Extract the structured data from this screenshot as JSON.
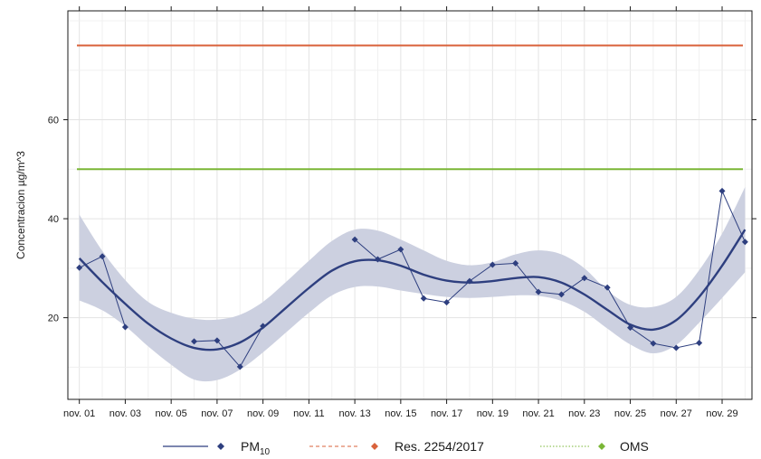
{
  "chart_data": {
    "type": "line",
    "ylabel": "Concentracion µg/m^3",
    "xlim": [
      0.5,
      30.3
    ],
    "ylim": [
      3.5,
      82
    ],
    "yticks": [
      20,
      40,
      60
    ],
    "xticks": [
      {
        "day": 1,
        "label": "nov. 01"
      },
      {
        "day": 3,
        "label": "nov. 03"
      },
      {
        "day": 5,
        "label": "nov. 05"
      },
      {
        "day": 7,
        "label": "nov. 07"
      },
      {
        "day": 9,
        "label": "nov. 09"
      },
      {
        "day": 11,
        "label": "nov. 11"
      },
      {
        "day": 13,
        "label": "nov. 13"
      },
      {
        "day": 15,
        "label": "nov. 15"
      },
      {
        "day": 17,
        "label": "nov. 17"
      },
      {
        "day": 19,
        "label": "nov. 19"
      },
      {
        "day": 21,
        "label": "nov. 21"
      },
      {
        "day": 23,
        "label": "nov. 23"
      },
      {
        "day": 25,
        "label": "nov. 25"
      },
      {
        "day": 27,
        "label": "nov. 27"
      },
      {
        "day": 29,
        "label": "nov. 29"
      }
    ],
    "grid": true,
    "legend_position": "bottom",
    "series": [
      {
        "name": "PM",
        "name_subscript": "10",
        "color": "#2e3f7f",
        "points": [
          {
            "day": 1,
            "value": 30.1
          },
          {
            "day": 2,
            "value": 32.4
          },
          {
            "day": 3,
            "value": 18.1
          },
          {
            "day": 6,
            "value": 15.2
          },
          {
            "day": 7,
            "value": 15.4
          },
          {
            "day": 8,
            "value": 10.1
          },
          {
            "day": 9,
            "value": 18.3
          },
          {
            "day": 13,
            "value": 35.8
          },
          {
            "day": 14,
            "value": 31.8
          },
          {
            "day": 15,
            "value": 33.8
          },
          {
            "day": 16,
            "value": 23.9
          },
          {
            "day": 17,
            "value": 23.1
          },
          {
            "day": 18,
            "value": 27.4
          },
          {
            "day": 19,
            "value": 30.7
          },
          {
            "day": 20,
            "value": 31.0
          },
          {
            "day": 21,
            "value": 25.2
          },
          {
            "day": 22,
            "value": 24.7
          },
          {
            "day": 23,
            "value": 28.0
          },
          {
            "day": 24,
            "value": 26.1
          },
          {
            "day": 25,
            "value": 18.0
          },
          {
            "day": 26,
            "value": 14.8
          },
          {
            "day": 27,
            "value": 13.9
          },
          {
            "day": 28,
            "value": 14.9
          },
          {
            "day": 29,
            "value": 45.6
          },
          {
            "day": 30,
            "value": 35.3
          }
        ],
        "smooth": [
          {
            "day": 1,
            "fit": 32.0,
            "lower": 23.5,
            "upper": 40.8
          },
          {
            "day": 2,
            "fit": 27.2,
            "lower": 21.5,
            "upper": 33.5
          },
          {
            "day": 3,
            "fit": 22.8,
            "lower": 18.3,
            "upper": 27.6
          },
          {
            "day": 4,
            "fit": 18.8,
            "lower": 14.2,
            "upper": 23.2
          },
          {
            "day": 5,
            "fit": 15.8,
            "lower": 10.5,
            "upper": 21.0
          },
          {
            "day": 6,
            "fit": 13.9,
            "lower": 7.5,
            "upper": 19.8
          },
          {
            "day": 7,
            "fit": 13.6,
            "lower": 7.4,
            "upper": 19.6
          },
          {
            "day": 8,
            "fit": 15.0,
            "lower": 9.5,
            "upper": 20.6
          },
          {
            "day": 9,
            "fit": 18.0,
            "lower": 13.0,
            "upper": 23.2
          },
          {
            "day": 10,
            "fit": 22.0,
            "lower": 17.0,
            "upper": 27.2
          },
          {
            "day": 11,
            "fit": 26.0,
            "lower": 21.0,
            "upper": 31.5
          },
          {
            "day": 12,
            "fit": 29.5,
            "lower": 24.5,
            "upper": 35.5
          },
          {
            "day": 13,
            "fit": 31.4,
            "lower": 26.2,
            "upper": 37.8
          },
          {
            "day": 14,
            "fit": 31.6,
            "lower": 26.3,
            "upper": 37.6
          },
          {
            "day": 15,
            "fit": 30.5,
            "lower": 25.5,
            "upper": 35.8
          },
          {
            "day": 16,
            "fit": 28.7,
            "lower": 24.8,
            "upper": 33.6
          },
          {
            "day": 17,
            "fit": 27.5,
            "lower": 24.2,
            "upper": 31.5
          },
          {
            "day": 18,
            "fit": 27.1,
            "lower": 24.0,
            "upper": 30.6
          },
          {
            "day": 19,
            "fit": 27.4,
            "lower": 24.2,
            "upper": 31.2
          },
          {
            "day": 20,
            "fit": 28.0,
            "lower": 24.5,
            "upper": 32.8
          },
          {
            "day": 21,
            "fit": 28.2,
            "lower": 24.4,
            "upper": 33.6
          },
          {
            "day": 22,
            "fit": 27.1,
            "lower": 23.4,
            "upper": 32.8
          },
          {
            "day": 23,
            "fit": 24.7,
            "lower": 21.2,
            "upper": 30.0
          },
          {
            "day": 24,
            "fit": 21.6,
            "lower": 17.8,
            "upper": 25.5
          },
          {
            "day": 25,
            "fit": 18.6,
            "lower": 14.6,
            "upper": 22.6
          },
          {
            "day": 26,
            "fit": 17.6,
            "lower": 12.8,
            "upper": 22.2
          },
          {
            "day": 27,
            "fit": 19.5,
            "lower": 14.5,
            "upper": 24.2
          },
          {
            "day": 28,
            "fit": 24.2,
            "lower": 19.0,
            "upper": 29.6
          },
          {
            "day": 29,
            "fit": 30.5,
            "lower": 24.0,
            "upper": 37.0
          },
          {
            "day": 30,
            "fit": 37.8,
            "lower": 29.2,
            "upper": 46.4
          }
        ]
      }
    ],
    "reference_lines": [
      {
        "name": "Res. 2254/2017",
        "value": 75,
        "color": "#d9623b"
      },
      {
        "name": "OMS",
        "value": 50,
        "color": "#7ab636"
      }
    ],
    "band_color": "#ccd0e0"
  }
}
